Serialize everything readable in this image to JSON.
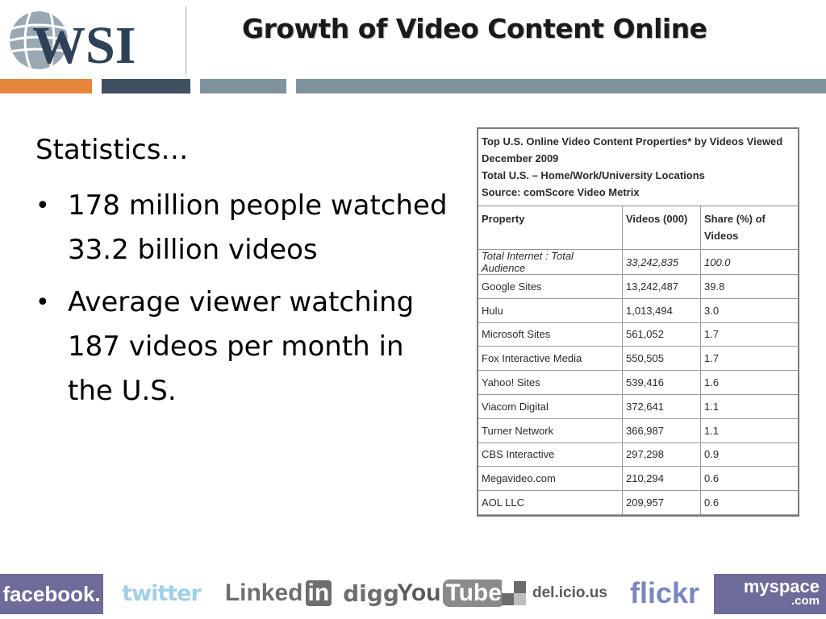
{
  "header": {
    "logo_text": "WSI",
    "title": "Growth of Video Content Online"
  },
  "body": {
    "heading": "Statistics…",
    "bullets": [
      "178 million people watched 33.2 billion videos",
      "Average viewer watching 187 videos per month in the U.S."
    ]
  },
  "table_image": {
    "caption_lines": [
      "Top U.S. Online Video Content Properties* by Videos Viewed",
      "December 2009",
      "Total U.S. – Home/Work/University Locations",
      "Source: comScore Video Metrix"
    ],
    "columns": [
      "Property",
      "Videos (000)",
      "Share (%) of Videos"
    ],
    "rows": [
      [
        "Total Internet : Total Audience",
        "33,242,835",
        "100.0"
      ],
      [
        "Google Sites",
        "13,242,487",
        "39.8"
      ],
      [
        "Hulu",
        "1,013,494",
        "3.0"
      ],
      [
        "Microsoft Sites",
        "561,052",
        "1.7"
      ],
      [
        "Fox Interactive Media",
        "550,505",
        "1.7"
      ],
      [
        "Yahoo! Sites",
        "539,416",
        "1.6"
      ],
      [
        "Viacom Digital",
        "372,641",
        "1.1"
      ],
      [
        "Turner Network",
        "366,987",
        "1.1"
      ],
      [
        "CBS Interactive",
        "297,298",
        "0.9"
      ],
      [
        "Megavideo.com",
        "210,294",
        "0.6"
      ],
      [
        "AOL LLC",
        "209,957",
        "0.6"
      ]
    ]
  },
  "footer_logos": {
    "facebook": "facebook.",
    "twitter": "twitter",
    "linkedin_a": "Linked",
    "linkedin_b": "in",
    "digg": "digg",
    "youtube_a": "You",
    "youtube_b": "Tube",
    "delicious": "del.icio.us",
    "flickr": "flickr",
    "myspace_a": "myspace",
    "myspace_b": ".com"
  },
  "colors": {
    "band_orange": "#e8853d",
    "band_navy": "#3f4f62",
    "band_slate": "#7f939d",
    "logo_navy": "#2f4158"
  }
}
